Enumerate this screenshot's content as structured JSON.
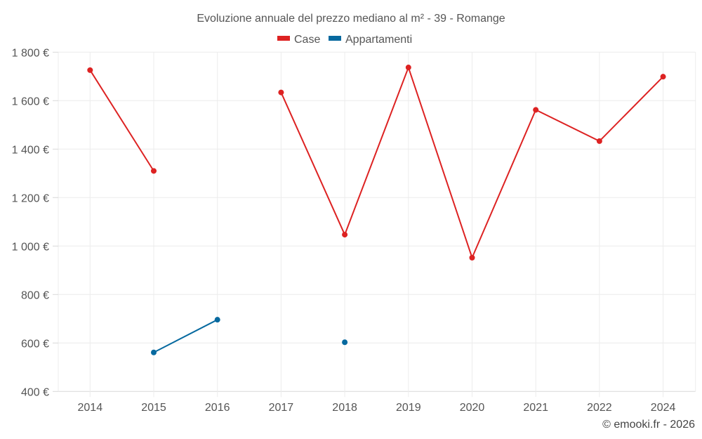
{
  "chart_data": {
    "type": "line",
    "title": "Evoluzione annuale del prezzo mediano al m² - 39 - Romange",
    "xlabel": "",
    "ylabel": "",
    "categories": [
      "2014",
      "2015",
      "2016",
      "2017",
      "2018",
      "2019",
      "2020",
      "2021",
      "2022",
      "2024"
    ],
    "series": [
      {
        "name": "Case",
        "color": "#dd2222",
        "values": [
          1726,
          1310,
          null,
          1634,
          1047,
          1737,
          952,
          1562,
          1433,
          1699
        ]
      },
      {
        "name": "Appartamenti",
        "color": "#06699f",
        "values": [
          null,
          561,
          696,
          null,
          603,
          null,
          null,
          null,
          null,
          null
        ]
      }
    ],
    "ylim": [
      400,
      1800
    ],
    "yticks": [
      400,
      600,
      800,
      1000,
      1200,
      1400,
      1600,
      1800
    ],
    "ytick_labels": [
      "400 €",
      "600 €",
      "800 €",
      "1 000 €",
      "1 200 €",
      "1 400 €",
      "1 600 €",
      "1 800 €"
    ],
    "grid": true,
    "legend_position": "top-center"
  },
  "credit": "© emooki.fr - 2026"
}
